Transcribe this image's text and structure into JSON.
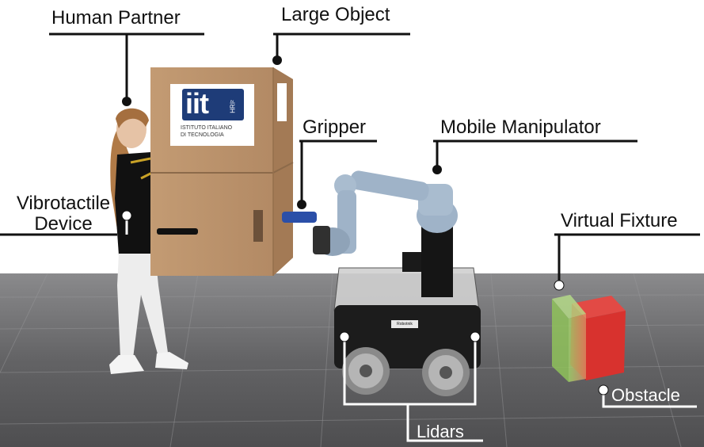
{
  "labels": {
    "human_partner": "Human Partner",
    "large_object": "Large Object",
    "gripper": "Gripper",
    "mobile_manipulator": "Mobile Manipulator",
    "vibrotactile_line1": "Vibrotactile",
    "vibrotactile_line2": "Device",
    "virtual_fixture": "Virtual Fixture",
    "obstacle": "Obstacle",
    "lidars": "Lidars"
  },
  "box_logo": {
    "brand": "iit",
    "sub": "HRI²",
    "line1": "ISTITUTO ITALIANO",
    "line2": "DI TECNOLOGIA"
  },
  "robot_badge": "Robotnik",
  "colors": {
    "floor": "#5c5c5e",
    "cardboard": "#b8916b",
    "robot_base": "#1c1c1c",
    "arm_blue": "#9fb3c8",
    "obstacle_red": "#d8322e",
    "fixture_green": "#9ec46e",
    "callout_line_dark": "#111111",
    "callout_line_light": "#ffffff"
  }
}
